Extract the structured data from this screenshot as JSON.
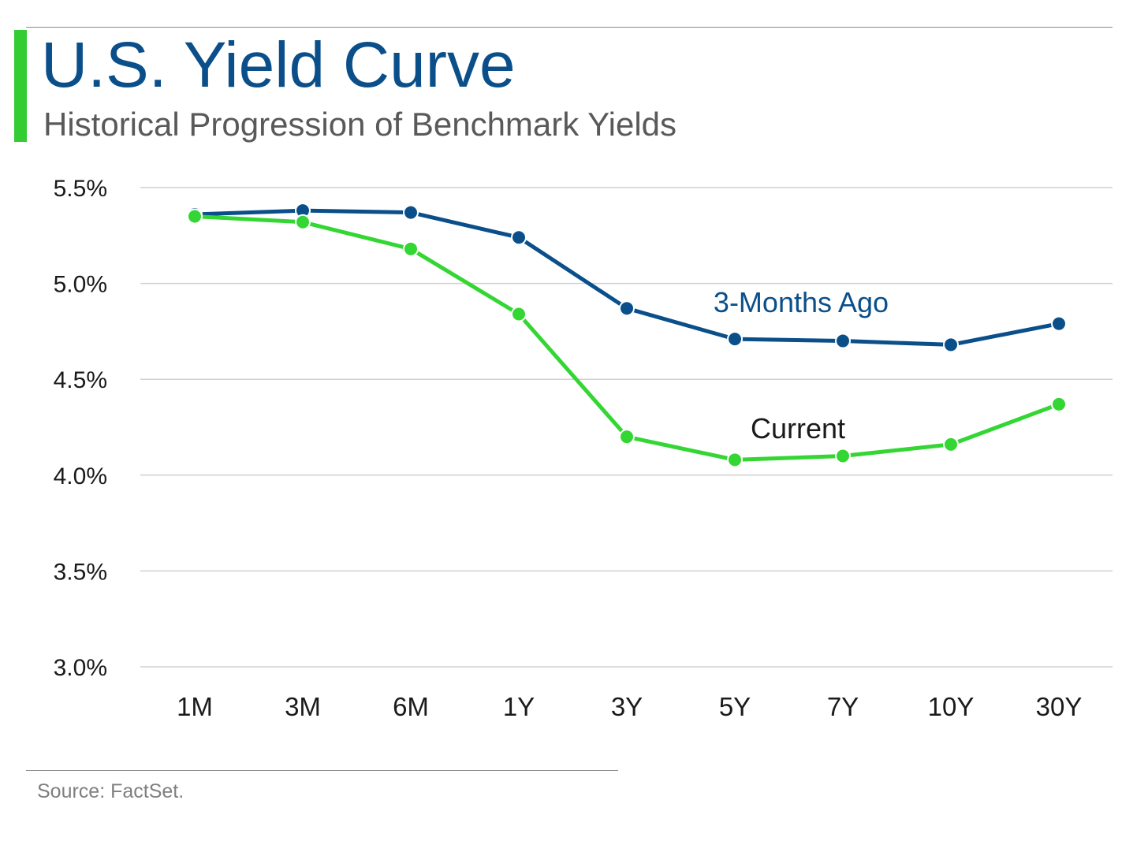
{
  "header": {
    "title": "U.S. Yield Curve",
    "subtitle": "Historical Progression of Benchmark Yields"
  },
  "footer": {
    "source": "Source: FactSet."
  },
  "colors": {
    "accent": "#33cc33",
    "title": "#0b4f8a",
    "series_prior": "#0b4f8a",
    "series_current": "#33d633",
    "grid": "#d0d0d0",
    "axis_text": "#1a1a1a"
  },
  "chart_data": {
    "type": "line",
    "categories": [
      "1M",
      "3M",
      "6M",
      "1Y",
      "3Y",
      "5Y",
      "7Y",
      "10Y",
      "30Y"
    ],
    "ylim": [
      3.0,
      5.5
    ],
    "yticks": [
      3.0,
      3.5,
      4.0,
      4.5,
      5.0,
      5.5
    ],
    "ytick_labels": [
      "3.0%",
      "3.5%",
      "4.0%",
      "4.5%",
      "5.0%",
      "5.5%"
    ],
    "grid": true,
    "legend": "inline labels",
    "series": [
      {
        "name": "3-Months Ago",
        "color": "#0b4f8a",
        "values": [
          5.36,
          5.38,
          5.37,
          5.24,
          4.87,
          4.71,
          4.7,
          4.68,
          4.79
        ]
      },
      {
        "name": "Current",
        "color": "#33d633",
        "values": [
          5.35,
          5.32,
          5.18,
          4.84,
          4.2,
          4.08,
          4.1,
          4.16,
          4.37
        ]
      }
    ]
  }
}
